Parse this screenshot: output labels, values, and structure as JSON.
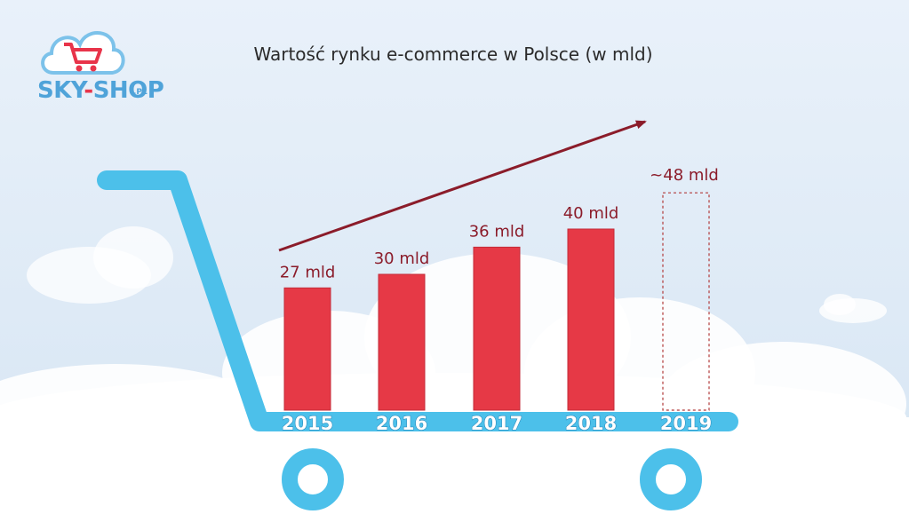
{
  "brand": {
    "name_part1": "SKY",
    "name_dash": "-",
    "name_part2": "SHOP",
    "name_suffix": ".PL"
  },
  "colors": {
    "bar": "#e63946",
    "bar_stroke": "#c42b38",
    "projection_outline": "#b23a3a",
    "label": "#8b1c2a",
    "trend_arrow": "#8b1c2a",
    "cart": "#4cc0ea",
    "background": "#dfeaf6",
    "cloud": "#ffffff"
  },
  "chart_data": {
    "type": "bar",
    "title": "Wartość rynku e-commerce w Polsce (w mld)",
    "xlabel": "",
    "ylabel": "",
    "ylim": [
      0,
      52
    ],
    "grid": false,
    "categories": [
      "2015",
      "2016",
      "2017",
      "2018",
      "2019"
    ],
    "values": [
      27,
      30,
      36,
      40,
      48
    ],
    "value_labels": [
      "27 mld",
      "30 mld",
      "36 mld",
      "40 mld",
      "~48 mld"
    ],
    "projected": [
      false,
      false,
      false,
      false,
      true
    ],
    "trend_arrow": true
  }
}
